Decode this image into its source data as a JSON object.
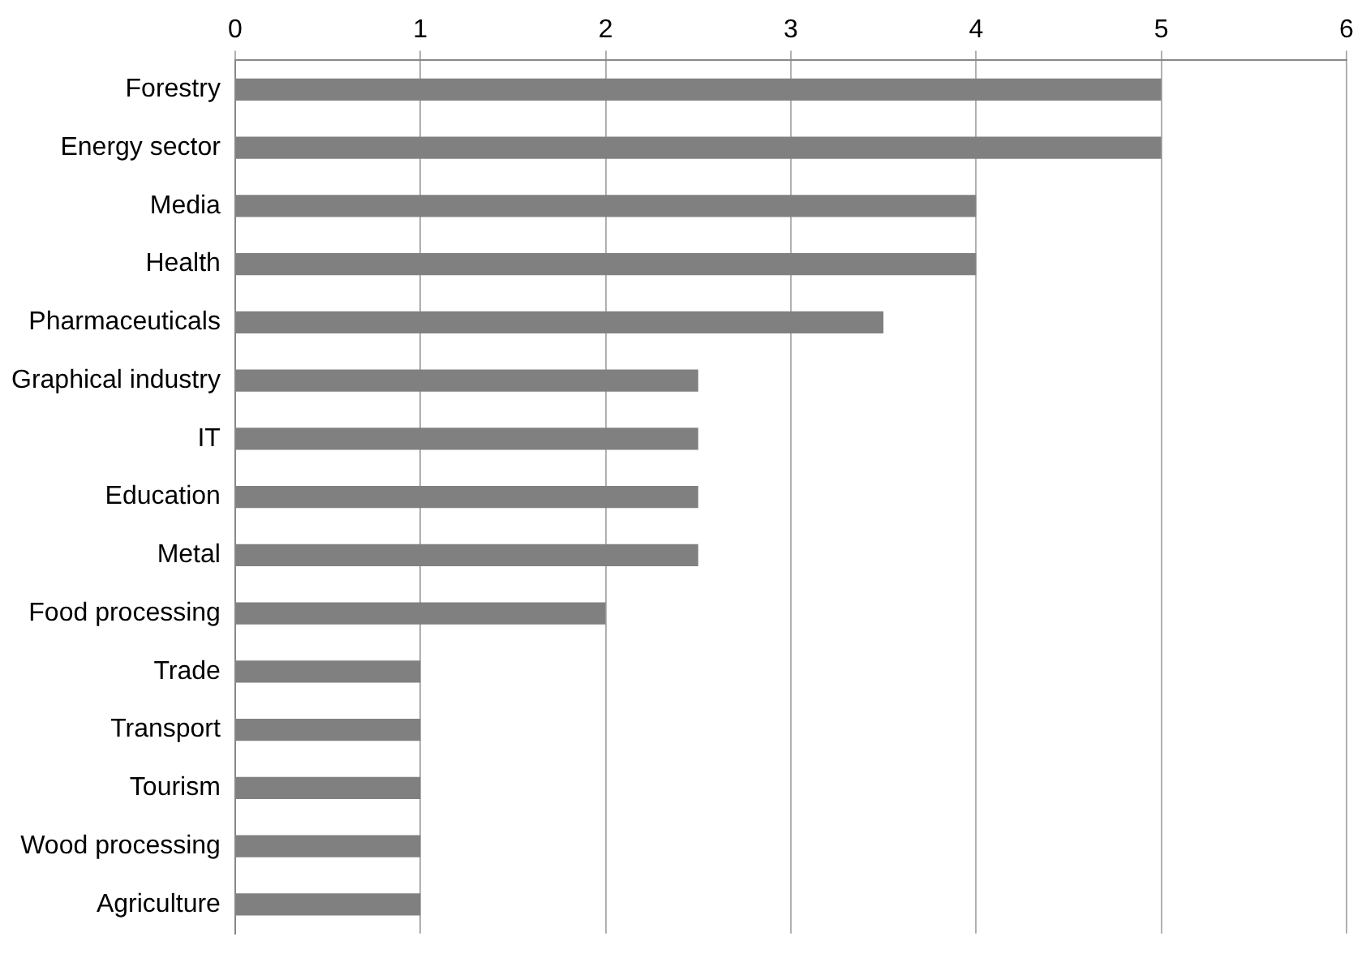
{
  "chart_data": {
    "type": "bar",
    "orientation": "horizontal",
    "categories": [
      "Forestry",
      "Energy sector",
      "Media",
      "Health",
      "Pharmaceuticals",
      "Graphical industry",
      "IT",
      "Education",
      "Metal",
      "Food processing",
      "Trade",
      "Transport",
      "Tourism",
      "Wood processing",
      "Agriculture"
    ],
    "values": [
      5,
      5,
      4,
      4,
      3.5,
      2.5,
      2.5,
      2.5,
      2.5,
      2,
      1,
      1,
      1,
      1,
      1
    ],
    "color": "#808080",
    "xlim": [
      0,
      6
    ],
    "xticks": [
      0,
      1,
      2,
      3,
      4,
      5,
      6
    ],
    "grid": "x",
    "legend": false
  }
}
